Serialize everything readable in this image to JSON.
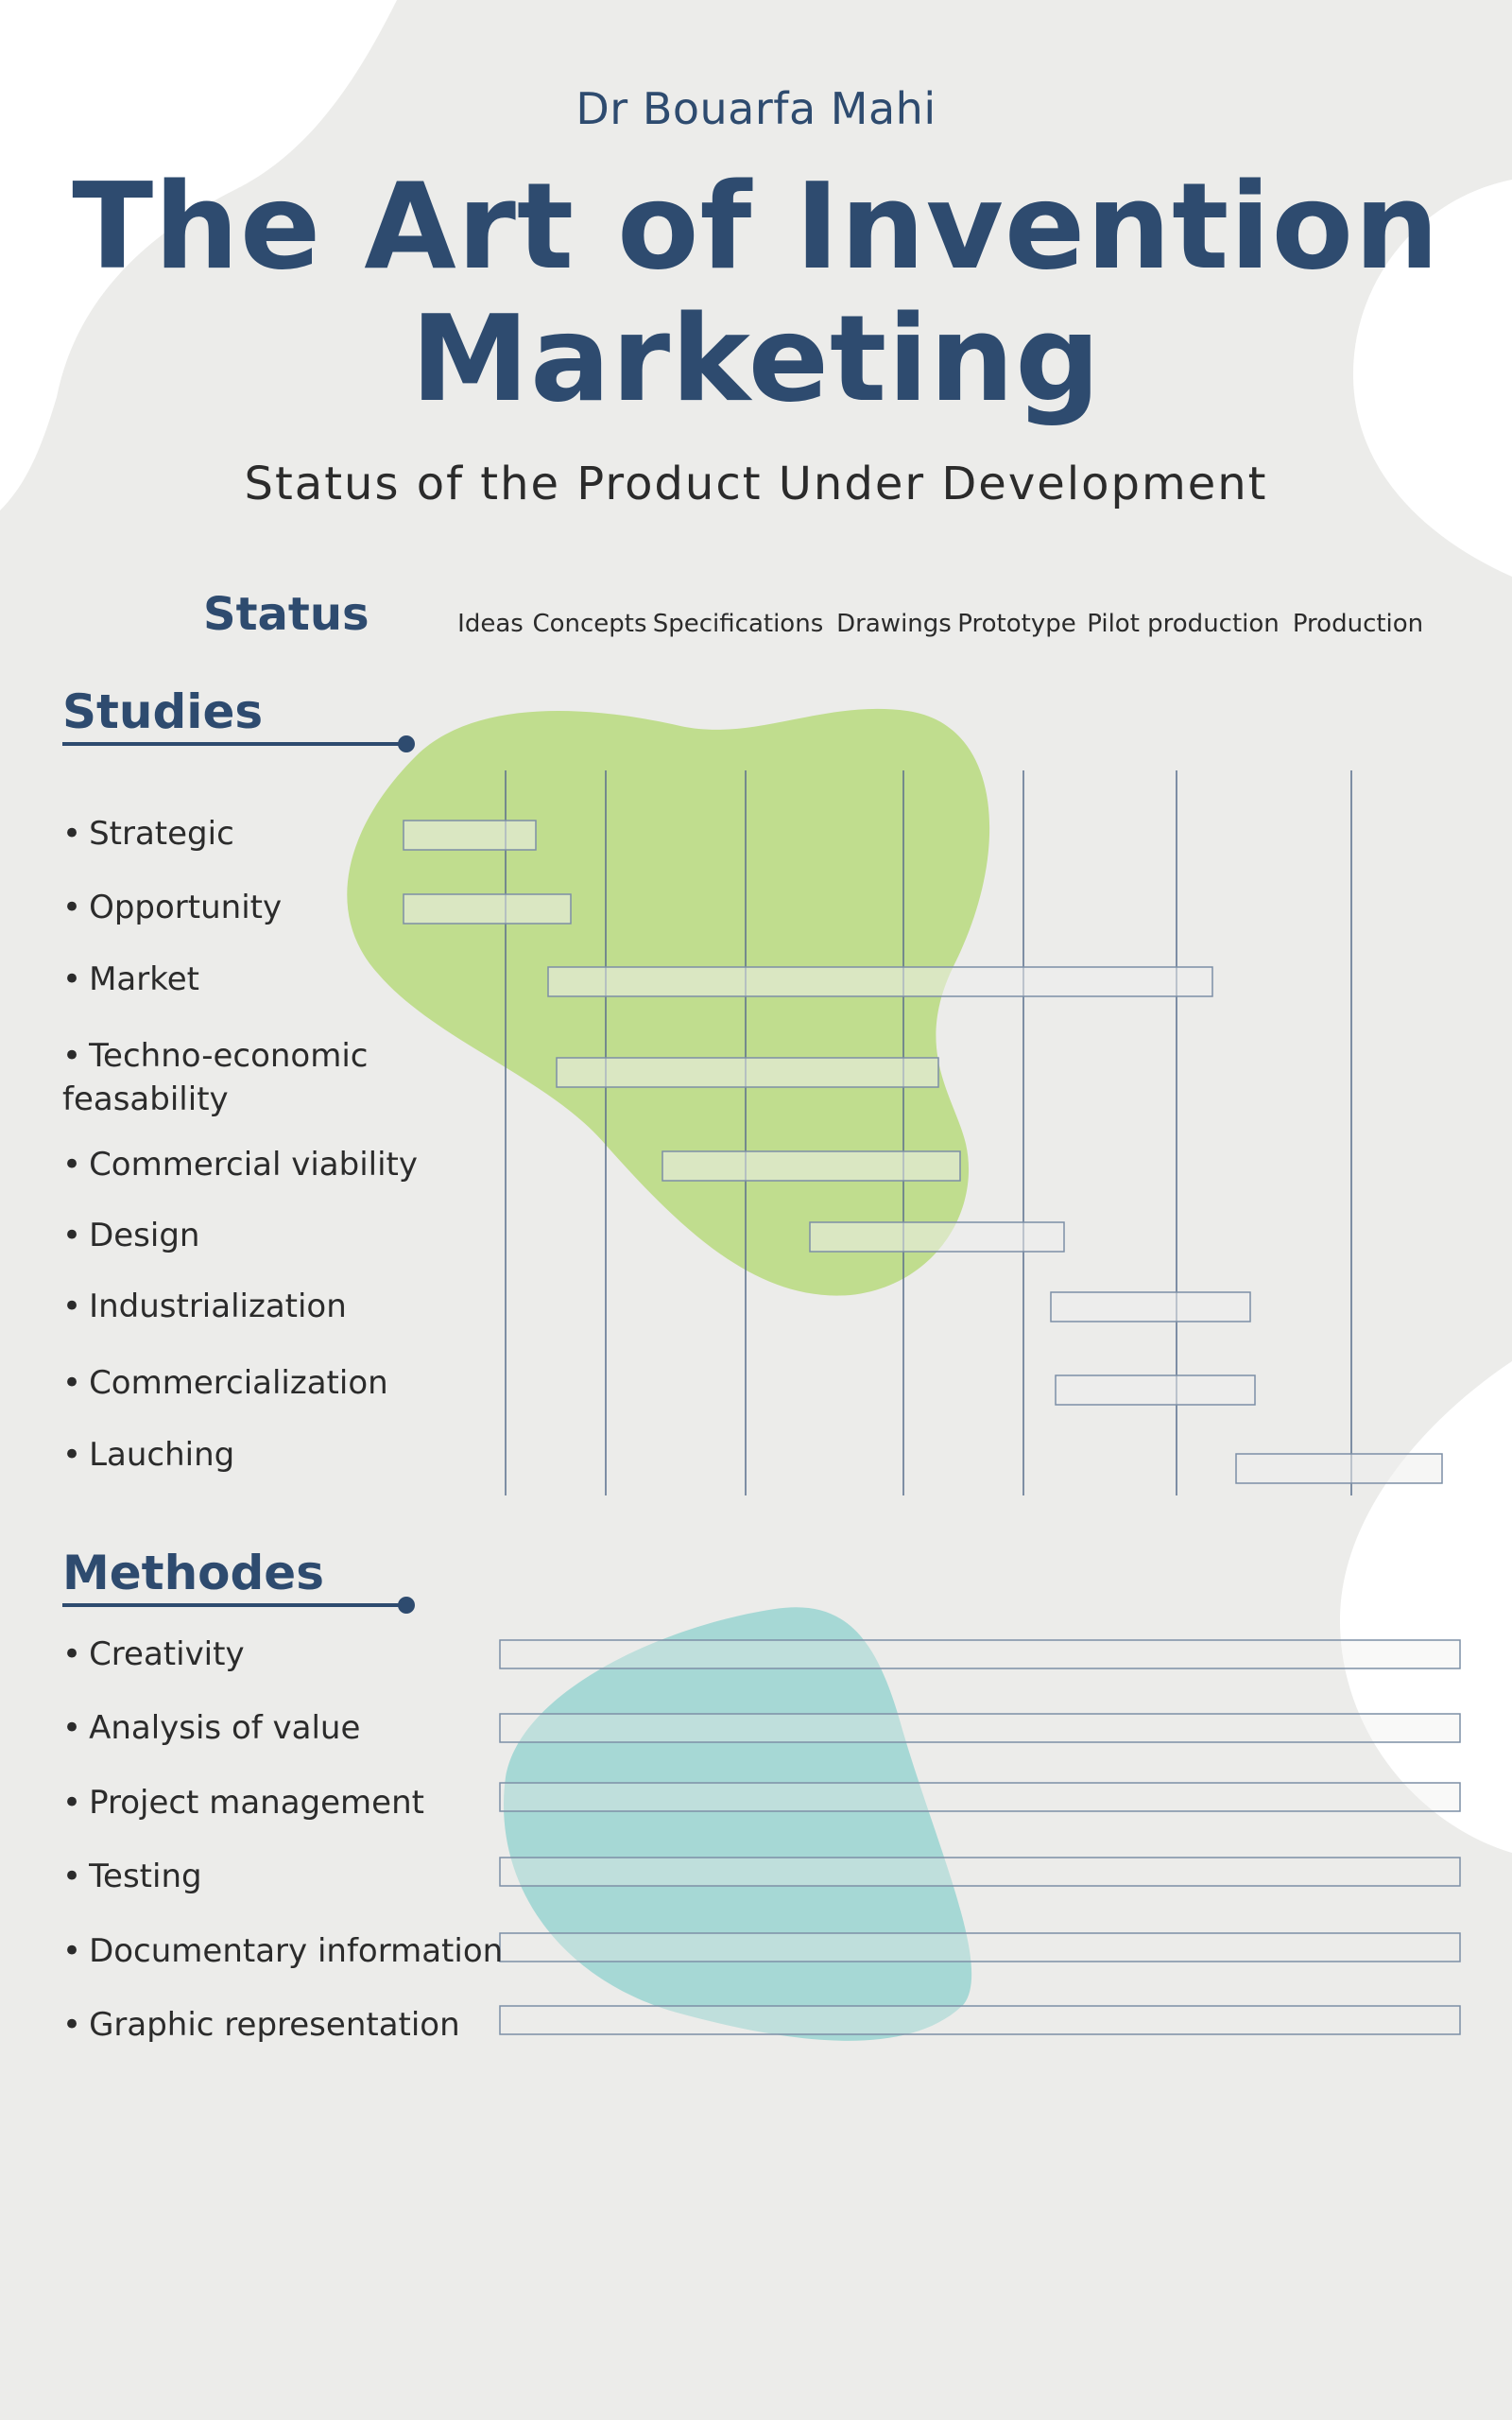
{
  "header": {
    "author": "Dr Bouarfa Mahi",
    "title": "The Art of Invention Marketing",
    "subtitle": "Status of the Product Under Development"
  },
  "status": {
    "heading": "Status",
    "columns": [
      "Ideas",
      "Concepts",
      "Specifications",
      "Drawings",
      "Prototype",
      "Pilot production",
      "Production"
    ]
  },
  "studies": {
    "heading": "Studies",
    "items": [
      "Strategic",
      "Opportunity",
      "Market",
      "Techno-economic feasability",
      "Commercial viability",
      "Design",
      "Industrialization",
      "Commercialization",
      "Lauching"
    ]
  },
  "methodes": {
    "heading": "Methodes",
    "items": [
      "Creativity",
      "Analysis of value",
      "Project management",
      "Testing",
      "Documentary information",
      "Graphic representation"
    ]
  },
  "colors": {
    "background": "#ececea",
    "navy": "#2e4b6f",
    "green_blob": "#c0dd8e",
    "teal_blob": "#a6d8d5",
    "bar_border": "#7d8fa6",
    "gridline": "#5a6f8c"
  }
}
